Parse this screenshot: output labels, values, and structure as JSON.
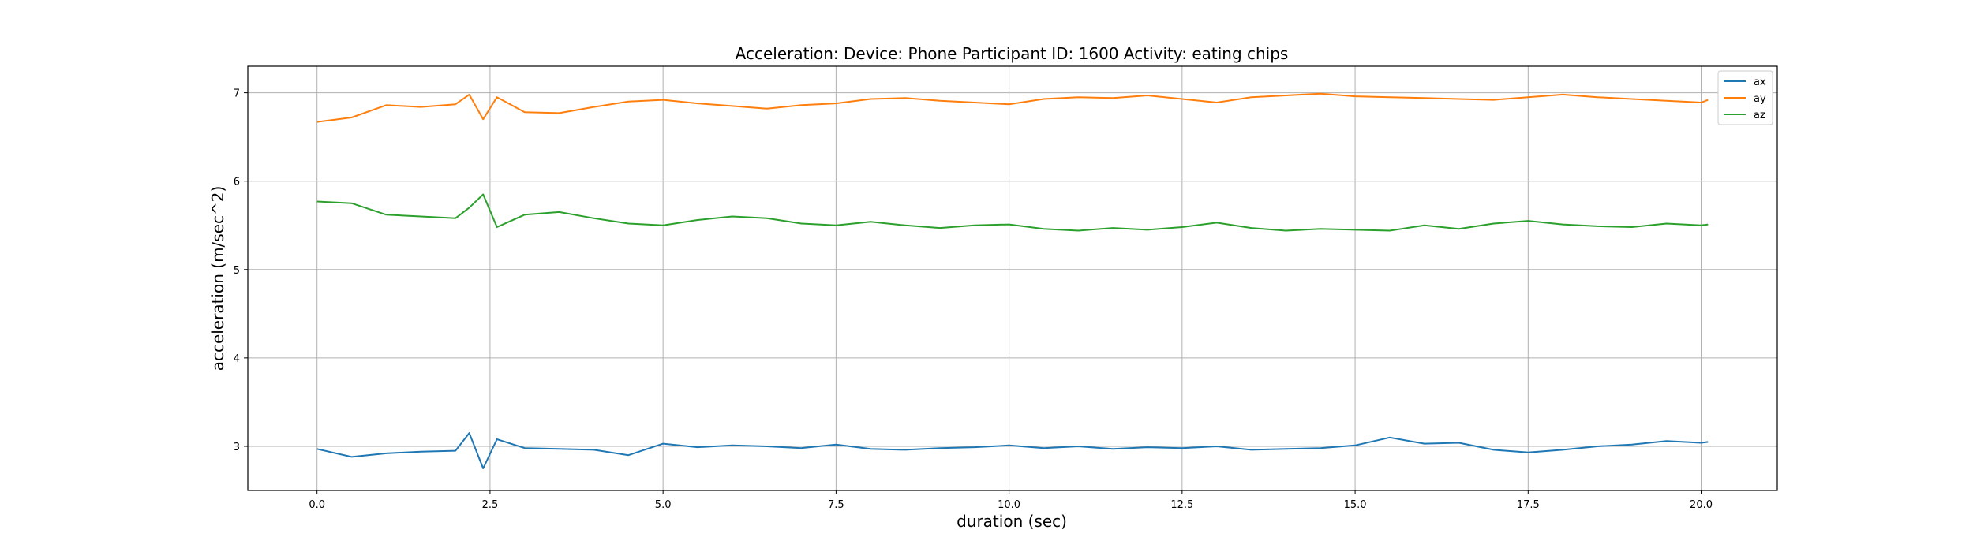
{
  "chart_data": {
    "type": "line",
    "title": "Acceleration:   Device: Phone     Participant ID: 1600      Activity:  eating chips",
    "xlabel": "duration  (sec)",
    "ylabel": "acceleration  (m/sec^2)",
    "xlim": [
      -1.0,
      21.1
    ],
    "ylim": [
      2.5,
      7.3
    ],
    "xticks": [
      0.0,
      2.5,
      5.0,
      7.5,
      10.0,
      12.5,
      15.0,
      17.5,
      20.0
    ],
    "xtick_labels": [
      "0.0",
      "2.5",
      "5.0",
      "7.5",
      "10.0",
      "12.5",
      "15.0",
      "17.5",
      "20.0"
    ],
    "yticks": [
      3,
      4,
      5,
      6,
      7
    ],
    "ytick_labels": [
      "3",
      "4",
      "5",
      "6",
      "7"
    ],
    "grid": true,
    "legend": "top-right",
    "x": [
      0.0,
      0.5,
      1.0,
      1.5,
      2.0,
      2.2,
      2.4,
      2.6,
      3.0,
      3.5,
      4.0,
      4.5,
      5.0,
      5.5,
      6.0,
      6.5,
      7.0,
      7.5,
      8.0,
      8.5,
      9.0,
      9.5,
      10.0,
      10.5,
      11.0,
      11.5,
      12.0,
      12.5,
      13.0,
      13.5,
      14.0,
      14.5,
      15.0,
      15.5,
      16.0,
      16.5,
      17.0,
      17.5,
      18.0,
      18.5,
      19.0,
      19.5,
      20.0,
      20.1
    ],
    "series": [
      {
        "name": "ax",
        "color": "#1f77b4",
        "values": [
          2.97,
          2.88,
          2.92,
          2.94,
          2.95,
          3.15,
          2.75,
          3.08,
          2.98,
          2.97,
          2.96,
          2.9,
          3.03,
          2.99,
          3.01,
          3.0,
          2.98,
          3.02,
          2.97,
          2.96,
          2.98,
          2.99,
          3.01,
          2.98,
          3.0,
          2.97,
          2.99,
          2.98,
          3.0,
          2.96,
          2.97,
          2.98,
          3.01,
          3.1,
          3.03,
          3.04,
          2.96,
          2.93,
          2.96,
          3.0,
          3.02,
          3.06,
          3.04,
          3.05
        ]
      },
      {
        "name": "ay",
        "color": "#ff7f0e",
        "values": [
          6.67,
          6.72,
          6.86,
          6.84,
          6.87,
          6.98,
          6.7,
          6.95,
          6.78,
          6.77,
          6.84,
          6.9,
          6.92,
          6.88,
          6.85,
          6.82,
          6.86,
          6.88,
          6.93,
          6.94,
          6.91,
          6.89,
          6.87,
          6.93,
          6.95,
          6.94,
          6.97,
          6.93,
          6.89,
          6.95,
          6.97,
          6.99,
          6.96,
          6.95,
          6.94,
          6.93,
          6.92,
          6.95,
          6.98,
          6.95,
          6.93,
          6.91,
          6.89,
          6.92
        ]
      },
      {
        "name": "az",
        "color": "#2ca02c",
        "values": [
          5.77,
          5.75,
          5.62,
          5.6,
          5.58,
          5.7,
          5.85,
          5.48,
          5.62,
          5.65,
          5.58,
          5.52,
          5.5,
          5.56,
          5.6,
          5.58,
          5.52,
          5.5,
          5.54,
          5.5,
          5.47,
          5.5,
          5.51,
          5.46,
          5.44,
          5.47,
          5.45,
          5.48,
          5.53,
          5.47,
          5.44,
          5.46,
          5.45,
          5.44,
          5.5,
          5.46,
          5.52,
          5.55,
          5.51,
          5.49,
          5.48,
          5.52,
          5.5,
          5.51
        ]
      }
    ]
  }
}
